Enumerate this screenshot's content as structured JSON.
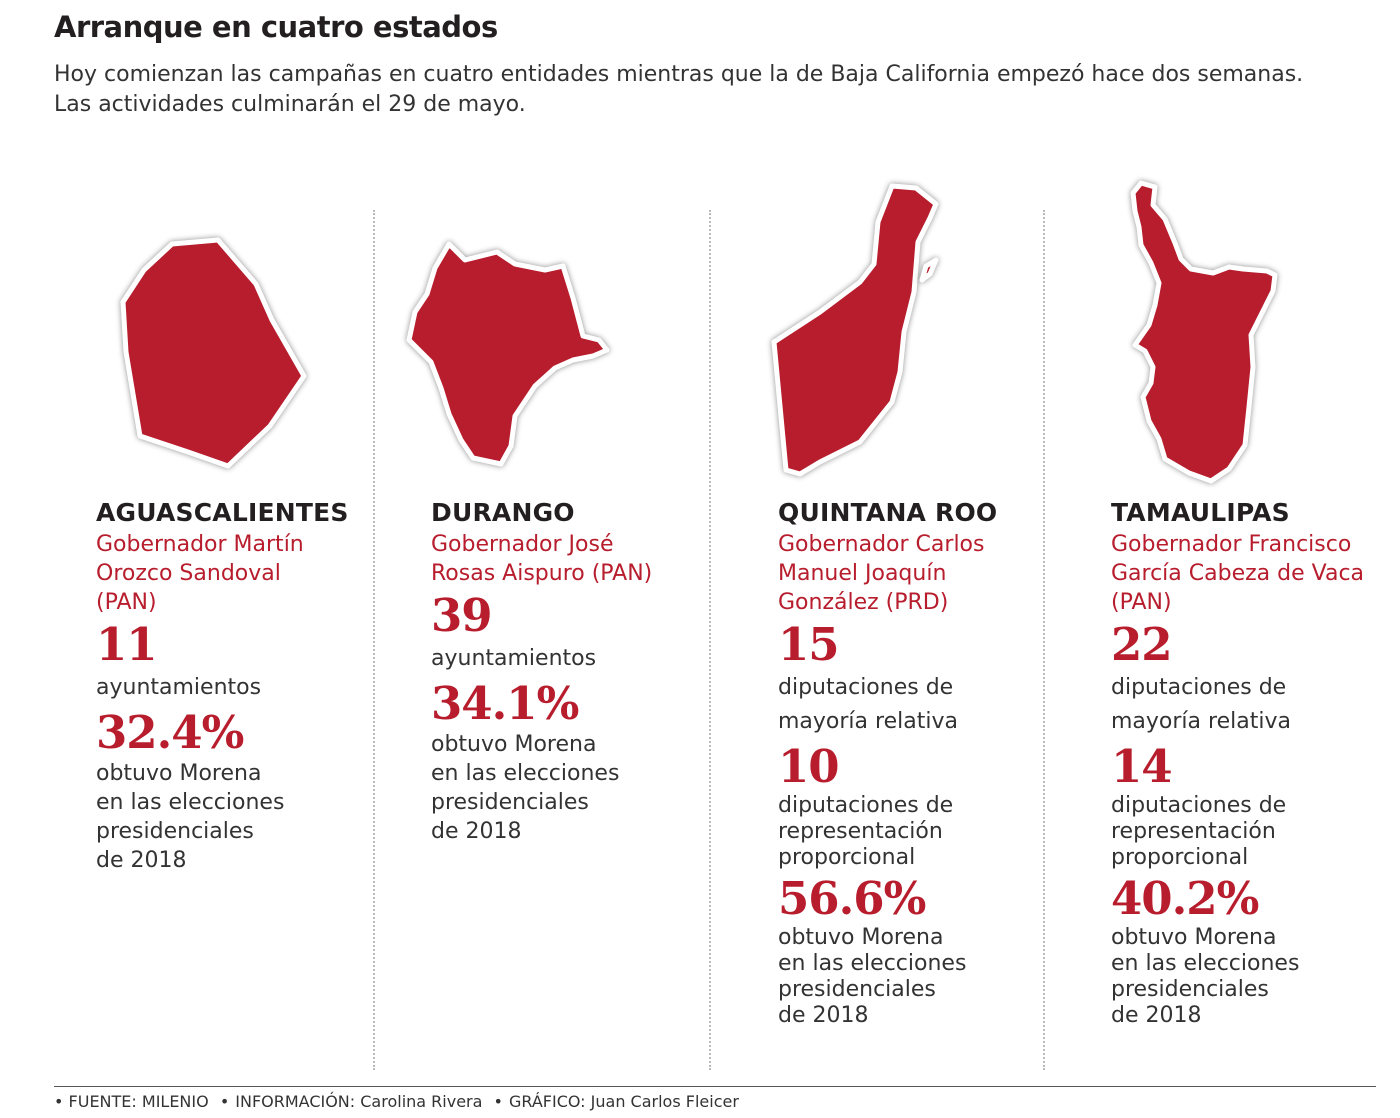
{
  "header": {
    "title": "Arranque en cuatro estados",
    "subtitle_line1": "Hoy comienzan las campañas en cuatro entidades mientras que la de Baja California empezó hace dos semanas.",
    "subtitle_line2": "Las actividades culminarán el 29 de mayo."
  },
  "colors": {
    "accent": "#b81d2d",
    "text": "#231f20"
  },
  "states": [
    {
      "name": "AGUASCALIENTES",
      "governor": [
        "Gobernador Martín",
        "Orozco Sandoval",
        "(PAN)"
      ],
      "stat1_value": "11",
      "stat1_label": "ayuntamientos",
      "stat3_value": "32.4%",
      "stat3_label": [
        "obtuvo Morena",
        "en las elecciones",
        "presidenciales",
        "de 2018"
      ]
    },
    {
      "name": "DURANGO",
      "governor": [
        "Gobernador José",
        "Rosas Aispuro (PAN)"
      ],
      "stat1_value": "39",
      "stat1_label": "ayuntamientos",
      "stat3_value": "34.1%",
      "stat3_label": [
        "obtuvo Morena",
        "en las elecciones",
        "presidenciales",
        "de 2018"
      ]
    },
    {
      "name": "QUINTANA ROO",
      "governor": [
        "Gobernador Carlos",
        "Manuel Joaquín",
        "González (PRD)"
      ],
      "stat1_value": "15",
      "stat1_label": [
        "diputaciones de",
        "mayoría relativa"
      ],
      "stat2_value": "10",
      "stat2_label": [
        "diputaciones de",
        "representación",
        "proporcional"
      ],
      "stat3_value": "56.6%",
      "stat3_label": [
        "obtuvo Morena",
        "en las elecciones",
        "presidenciales",
        "de 2018"
      ]
    },
    {
      "name": "TAMAULIPAS",
      "governor": [
        "Gobernador Francisco",
        "García Cabeza de Vaca",
        "(PAN)"
      ],
      "stat1_value": "22",
      "stat1_label": [
        "diputaciones de",
        "mayoría relativa"
      ],
      "stat2_value": "14",
      "stat2_label": [
        "diputaciones de",
        "representación",
        "proporcional"
      ],
      "stat3_value": "40.2%",
      "stat3_label": [
        "obtuvo Morena",
        "en las elecciones",
        "presidenciales",
        "de 2018"
      ]
    }
  ],
  "footer": {
    "source": "FUENTE: MILENIO",
    "info": "INFORMACIÓN: Carolina Rivera",
    "graphic": "GRÁFICO: Juan Carlos Fleicer"
  }
}
